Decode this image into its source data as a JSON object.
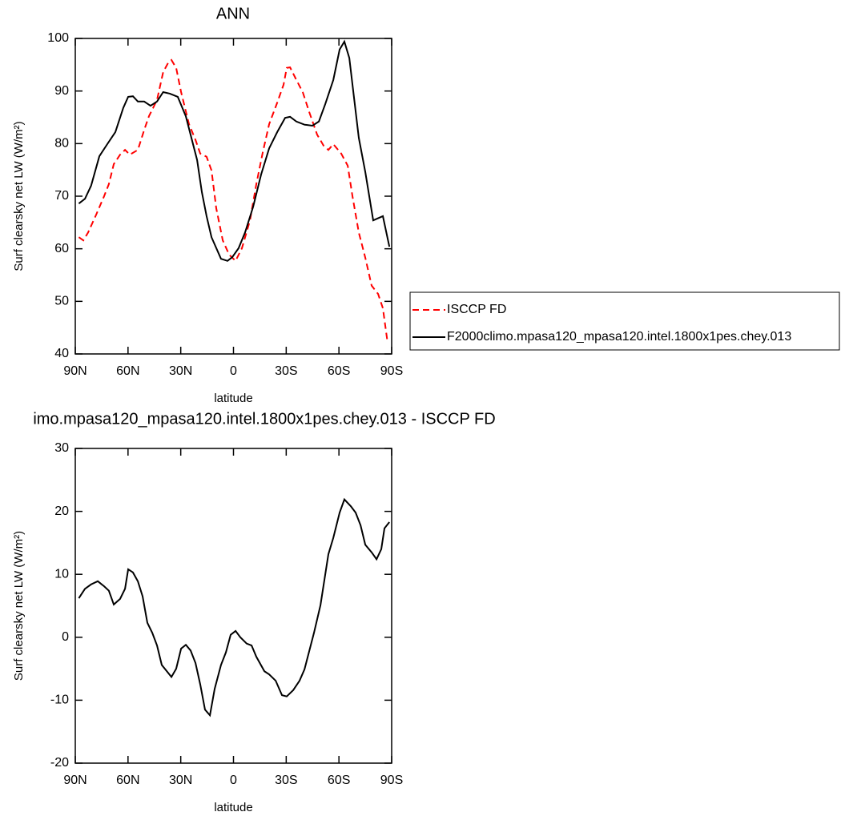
{
  "chart_data": [
    {
      "type": "line",
      "title": "ANN",
      "xlabel": "latitude",
      "ylabel": "Surf clearsky net LW (W/m²)",
      "xlim": [
        90,
        -90
      ],
      "xticks": [
        {
          "value": 90,
          "label": "90N"
        },
        {
          "value": 60,
          "label": "60N"
        },
        {
          "value": 30,
          "label": "30N"
        },
        0,
        {
          "value": -30,
          "label": "30S"
        },
        {
          "value": -60,
          "label": "60S"
        },
        {
          "value": -90,
          "label": "90S"
        }
      ],
      "ylim": [
        40,
        100
      ],
      "yticks": [
        40,
        50,
        60,
        70,
        80,
        90,
        100
      ],
      "legend": "right",
      "series": [
        {
          "name": "ISCCP FD",
          "color": "#ff0000",
          "dash": true,
          "x": [
            88,
            85.4,
            82.7,
            78.1,
            73.6,
            70.9,
            68.1,
            64.5,
            61.7,
            59,
            54.4,
            50.8,
            48.1,
            43.5,
            40,
            37.1,
            35.3,
            32.6,
            29.8,
            25.3,
            21.6,
            18.9,
            15.3,
            12.5,
            9.8,
            6.1,
            2.5,
            -1.2,
            -4.8,
            -9.4,
            -13,
            -16.7,
            -20.3,
            -24.9,
            -28.5,
            -30.3,
            -32.2,
            -35.8,
            -39.4,
            -43.1,
            -47.6,
            -51.3,
            -54,
            -56.8,
            -61.3,
            -65,
            -67.7,
            -71.3,
            -75,
            -78.6,
            -82.3,
            -85,
            -87.7
          ],
          "values": [
            62.2,
            61.6,
            63.1,
            66.5,
            70,
            72.3,
            76.1,
            77.9,
            78.8,
            77.9,
            78.8,
            82.6,
            85.2,
            88.3,
            93.6,
            95.4,
            95.9,
            94.4,
            89.8,
            83.7,
            80.7,
            78.1,
            77.5,
            74.9,
            67.7,
            61.6,
            58.9,
            57.7,
            60.1,
            65.4,
            72.3,
            78.4,
            83.7,
            87.8,
            91.2,
            94.4,
            94.5,
            92.1,
            89.8,
            86,
            81.7,
            79.6,
            78.8,
            79.9,
            78.1,
            75.8,
            70,
            63.1,
            58.3,
            53,
            51.4,
            48.7,
            42.1
          ]
        },
        {
          "name": "F2000climo.mpasa120_mpasa120.intel.1800x1pes.chey.013",
          "color": "#000000",
          "dash": false,
          "x": [
            88,
            84.5,
            81,
            76.3,
            71.8,
            67.2,
            62.7,
            59.9,
            57.2,
            54.4,
            50.8,
            47.2,
            43.5,
            40,
            36.2,
            31.7,
            27.1,
            20.7,
            18,
            15.3,
            12.5,
            7.1,
            3.4,
            0.7,
            -2.9,
            -6.6,
            -11.2,
            -15.7,
            -20.3,
            -24.9,
            -29.4,
            -32.2,
            -35.8,
            -40.4,
            -44.9,
            -48.6,
            -52.2,
            -56.8,
            -60.4,
            -63.1,
            -65.9,
            -71.3,
            -75,
            -79.5,
            -85,
            -88.7
          ],
          "values": [
            68.6,
            69.5,
            72,
            77.6,
            79.9,
            82.2,
            86.8,
            88.9,
            89,
            88,
            88,
            87.2,
            88,
            89.8,
            89.5,
            88.9,
            85.2,
            76.9,
            70.8,
            66.2,
            62.2,
            58.1,
            57.7,
            58.4,
            60.1,
            63.1,
            68,
            74.1,
            79.1,
            82.2,
            84.9,
            85.1,
            84.2,
            83.6,
            83.4,
            84.2,
            87.5,
            92.1,
            97.9,
            99.4,
            96.3,
            81.1,
            74.6,
            65.4,
            66.2,
            60.4
          ]
        }
      ]
    },
    {
      "type": "line",
      "title": "imo.mpasa120_mpasa120.intel.1800x1pes.chey.013 - ISCCP FD",
      "xlabel": "latitude",
      "ylabel": "Surf clearsky net LW (W/m²)",
      "xlim": [
        90,
        -90
      ],
      "xticks": [
        {
          "value": 90,
          "label": "90N"
        },
        {
          "value": 60,
          "label": "60N"
        },
        {
          "value": 30,
          "label": "30N"
        },
        0,
        {
          "value": -30,
          "label": "30S"
        },
        {
          "value": -60,
          "label": "60S"
        },
        {
          "value": -90,
          "label": "90S"
        }
      ],
      "ylim": [
        -20,
        30
      ],
      "yticks": [
        -20,
        -10,
        0,
        10,
        20,
        30
      ],
      "color": "#000000",
      "x": [
        88,
        84.5,
        81,
        77.2,
        73.6,
        70.9,
        68.1,
        64.5,
        61.7,
        59.9,
        57.2,
        54.4,
        51.7,
        49,
        46.2,
        43.5,
        40.8,
        35.3,
        32.6,
        29.8,
        27.1,
        24.4,
        21.6,
        18.9,
        16.2,
        13.4,
        10.7,
        7.1,
        4.3,
        1.6,
        -1.2,
        -3.9,
        -7.5,
        -10.3,
        -13,
        -17.6,
        -20.3,
        -24,
        -27.6,
        -30.3,
        -34,
        -37.6,
        -40.4,
        -43.1,
        -45.8,
        -49.5,
        -54,
        -56.8,
        -60.4,
        -63.1,
        -66.8,
        -69.5,
        -72.3,
        -75,
        -78.6,
        -81.4,
        -84.1,
        -85.9,
        -88.7
      ],
      "values": [
        6.2,
        7.7,
        8.4,
        8.9,
        8.1,
        7.4,
        5.2,
        6.1,
        7.7,
        10.8,
        10.3,
        8.9,
        6.5,
        2.3,
        0.7,
        -1.3,
        -4.4,
        -6.3,
        -5,
        -1.8,
        -1.2,
        -2.1,
        -4.1,
        -7.5,
        -11.5,
        -12.4,
        -8.2,
        -4.4,
        -2.4,
        0.4,
        1,
        0,
        -1,
        -1.3,
        -3.1,
        -5.4,
        -5.9,
        -6.9,
        -9.2,
        -9.4,
        -8.4,
        -6.9,
        -5.1,
        -2.2,
        0.7,
        5.1,
        13.2,
        15.8,
        19.8,
        21.9,
        20.8,
        19.8,
        17.8,
        14.7,
        13.5,
        12.4,
        14,
        17.3,
        18.3
      ]
    }
  ]
}
